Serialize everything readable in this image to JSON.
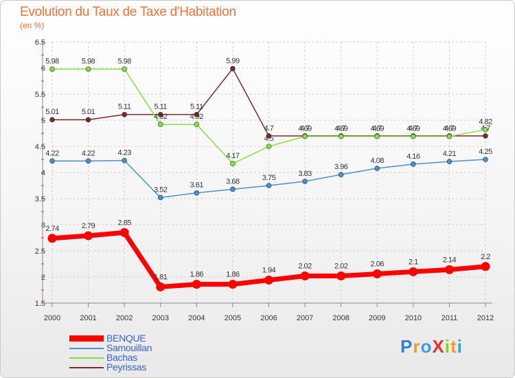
{
  "header": {
    "title": "Evolution du Taux de Taxe d'Habitation",
    "subtitle": "(en %)"
  },
  "logo": {
    "text": "ProXiti"
  },
  "chart_data": {
    "type": "line",
    "x": [
      "2000",
      "2001",
      "2002",
      "2003",
      "2004",
      "2005",
      "2006",
      "2007",
      "2008",
      "2009",
      "2010",
      "2011",
      "2012"
    ],
    "ylim": [
      1.5,
      6.5
    ],
    "yticks": [
      "1.5",
      "2",
      "2.5",
      "3",
      "3.5",
      "4",
      "4.5",
      "5",
      "5.5",
      "6",
      "6.5"
    ],
    "grid": true,
    "legend_position": "bottom-left",
    "series": [
      {
        "name": "BENQUE",
        "color": "#ff0000",
        "emphasis": true,
        "values": [
          2.74,
          2.79,
          2.85,
          1.81,
          1.86,
          1.86,
          1.94,
          2.02,
          2.02,
          2.06,
          2.1,
          2.14,
          2.2
        ],
        "labels": [
          "2.74",
          "2.79",
          "2.85",
          "1.81",
          "1.86",
          "1.86",
          "1.94",
          "2.02",
          "2.02",
          "2.06",
          "2.1",
          "2.14",
          "2.2"
        ]
      },
      {
        "name": "Samouillan",
        "color": "#4a8fd0",
        "values": [
          4.22,
          4.22,
          4.23,
          3.52,
          3.61,
          3.68,
          3.75,
          3.83,
          3.96,
          4.08,
          4.16,
          4.21,
          4.25
        ],
        "labels": [
          "4.22",
          "4.22",
          "4.23",
          "3.52",
          "3.61",
          "3.68",
          "3.75",
          "3.83",
          "3.96",
          "4.08",
          "4.16",
          "4.21",
          "4.25"
        ]
      },
      {
        "name": "Bachas",
        "color": "#88dd44",
        "values": [
          5.98,
          5.98,
          5.98,
          4.92,
          4.92,
          4.17,
          4.5,
          4.69,
          4.69,
          4.69,
          4.69,
          4.69,
          4.82
        ],
        "labels": [
          "5.98",
          "5.98",
          "5.98",
          "4.92",
          "4.92",
          "4.17",
          "4.5",
          "4.69",
          "4.69",
          "4.69",
          "4.69",
          "4.69",
          "4.82"
        ]
      },
      {
        "name": "Peyrissas",
        "color": "#7a2a2a",
        "values": [
          5.01,
          5.01,
          5.11,
          5.11,
          5.11,
          5.99,
          4.7,
          4.7,
          4.7,
          4.7,
          4.7,
          4.7,
          4.7
        ],
        "labels": [
          "5.01",
          "5.01",
          "5.11",
          "5.11",
          "5.11",
          "5.99",
          "4.7",
          "4.7",
          "4.7",
          "4.7",
          "4.7",
          "4.7",
          "4.7"
        ]
      }
    ]
  }
}
